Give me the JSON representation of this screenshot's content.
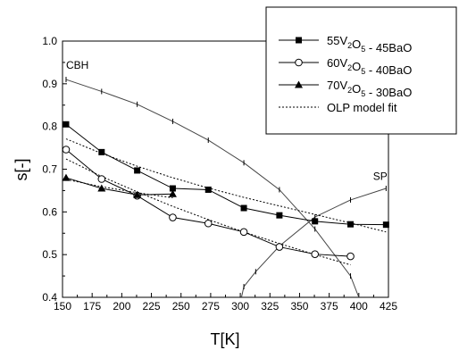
{
  "chart_data": {
    "type": "line",
    "xlabel": "T[K]",
    "ylabel": "s[-]",
    "xlim": [
      150,
      425
    ],
    "ylim": [
      0.4,
      1.0
    ],
    "xticks": [
      150,
      175,
      200,
      225,
      250,
      275,
      300,
      325,
      350,
      375,
      400,
      425
    ],
    "yticks": [
      0.4,
      0.5,
      0.6,
      0.7,
      0.8,
      0.9,
      1.0
    ],
    "x_tick_labels": [
      "150",
      "175",
      "200",
      "225",
      "250",
      "275",
      "300",
      "325",
      "350",
      "375",
      "400",
      "425"
    ],
    "y_tick_labels": [
      "0.4",
      "0.5",
      "0.6",
      "0.7",
      "0.8",
      "0.9",
      "1.0"
    ],
    "grid": false,
    "legend_position": "top-right",
    "legend": [
      {
        "parts": [
          [
            "55V",
            ""
          ],
          [
            "2",
            "sub"
          ],
          [
            "O",
            ""
          ],
          [
            "5",
            "sub"
          ],
          [
            " - 45BaO",
            ""
          ]
        ]
      },
      {
        "parts": [
          [
            "60V",
            ""
          ],
          [
            "2",
            "sub"
          ],
          [
            "O",
            ""
          ],
          [
            "5",
            "sub"
          ],
          [
            " - 40BaO",
            ""
          ]
        ]
      },
      {
        "parts": [
          [
            "70V",
            ""
          ],
          [
            "2",
            "sub"
          ],
          [
            "O",
            ""
          ],
          [
            "5",
            "sub"
          ],
          [
            " - 30BaO",
            ""
          ]
        ]
      },
      {
        "parts": [
          [
            "OLP model fit",
            ""
          ]
        ]
      }
    ],
    "annotations": [
      {
        "text": "CBH",
        "x": 153,
        "y": 0.935
      },
      {
        "text": "SP",
        "x": 412,
        "y": 0.675
      }
    ],
    "series": [
      {
        "marker": "square",
        "x": [
          153,
          183,
          213,
          243,
          273,
          303,
          333,
          363,
          393,
          423
        ],
        "y": [
          0.805,
          0.74,
          0.697,
          0.655,
          0.652,
          0.609,
          0.592,
          0.578,
          0.571,
          0.57
        ]
      },
      {
        "marker": "circle-open",
        "x": [
          153,
          183,
          213,
          243,
          273,
          303,
          333,
          363,
          393
        ],
        "y": [
          0.746,
          0.677,
          0.638,
          0.587,
          0.573,
          0.553,
          0.518,
          0.501,
          0.496
        ]
      },
      {
        "marker": "triangle",
        "x": [
          153,
          183,
          213,
          243
        ],
        "y": [
          0.68,
          0.655,
          0.64,
          0.642
        ]
      }
    ],
    "fits": [
      {
        "x": [
          153,
          183,
          213,
          243,
          273,
          303,
          333,
          363,
          393,
          423
        ],
        "y": [
          0.771,
          0.737,
          0.707,
          0.68,
          0.656,
          0.634,
          0.614,
          0.594,
          0.574,
          0.553
        ]
      },
      {
        "x": [
          153,
          183,
          213,
          243,
          273,
          303,
          333,
          363,
          393
        ],
        "y": [
          0.724,
          0.683,
          0.647,
          0.613,
          0.582,
          0.553,
          0.526,
          0.5,
          0.476
        ]
      },
      {
        "x": [
          153,
          183,
          213,
          243
        ],
        "y": [
          0.676,
          0.659,
          0.645,
          0.633
        ]
      }
    ],
    "model_curves": [
      {
        "name": "CBH",
        "marker": "tick",
        "x": [
          153,
          183,
          213,
          243,
          273,
          303,
          333,
          363,
          393,
          400
        ],
        "y": [
          0.91,
          0.882,
          0.852,
          0.812,
          0.768,
          0.715,
          0.652,
          0.56,
          0.45,
          0.4
        ]
      },
      {
        "name": "SP",
        "marker": "tick",
        "x": [
          301,
          303,
          313,
          333,
          363,
          393,
          423
        ],
        "y": [
          0.4,
          0.425,
          0.46,
          0.52,
          0.588,
          0.628,
          0.655
        ]
      }
    ]
  }
}
